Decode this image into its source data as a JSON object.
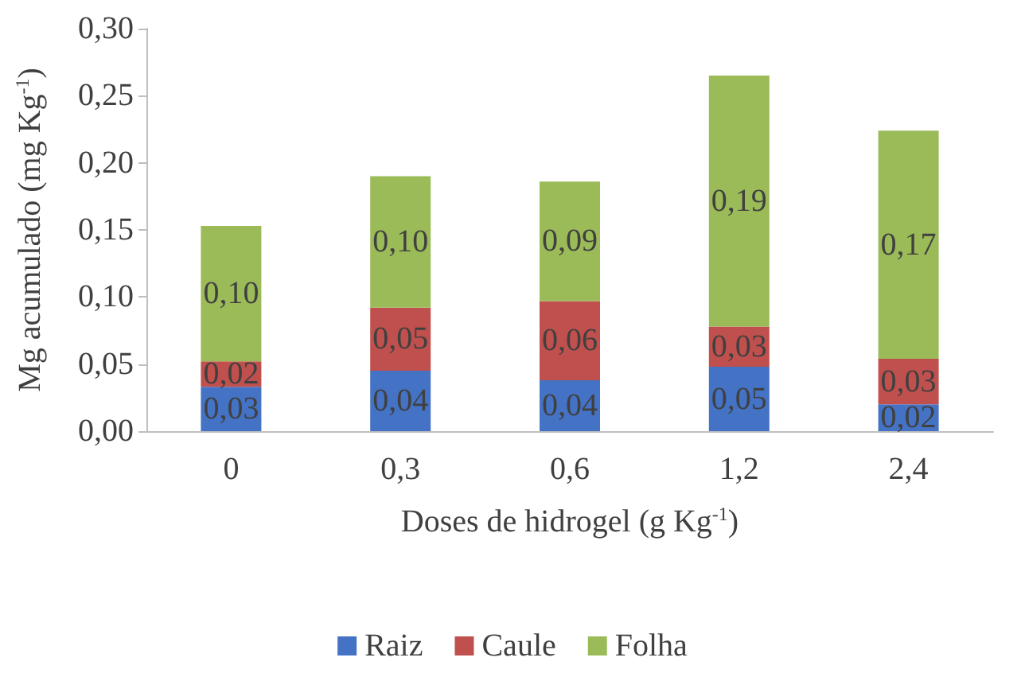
{
  "chart_data": {
    "type": "bar",
    "stacked": true,
    "xlabel": "Doses de hidrogel (g Kg$^{-1}$)",
    "ylabel": "Mg acumulado (mg Kg$^{-1}$)",
    "categories": [
      "0",
      "0,3",
      "0,6",
      "1,2",
      "2,4"
    ],
    "series": [
      {
        "name": "Raiz",
        "color": "#4472c4",
        "values": [
          0.033,
          0.045,
          0.038,
          0.048,
          0.02
        ],
        "value_labels": [
          "0,03",
          "0,04",
          "0,04",
          "0,05",
          "0,02"
        ]
      },
      {
        "name": "Caule",
        "color": "#c0504d",
        "values": [
          0.019,
          0.047,
          0.059,
          0.03,
          0.034
        ],
        "value_labels": [
          "0,02",
          "0,05",
          "0,06",
          "0,03",
          "0,03"
        ]
      },
      {
        "name": "Folha",
        "color": "#9bbb59",
        "values": [
          0.101,
          0.098,
          0.089,
          0.187,
          0.17
        ],
        "value_labels": [
          "0,10",
          "0,10",
          "0,09",
          "0,19",
          "0,17"
        ]
      }
    ],
    "ylim": [
      0,
      0.3
    ],
    "yticks": [
      {
        "value": 0,
        "label": "0,00"
      },
      {
        "value": 0.05,
        "label": "0,05"
      },
      {
        "value": 0.1,
        "label": "0,10"
      },
      {
        "value": 0.15,
        "label": "0,15"
      },
      {
        "value": 0.2,
        "label": "0,20"
      },
      {
        "value": 0.25,
        "label": "0,25"
      },
      {
        "value": 0.3,
        "label": "0,30"
      }
    ],
    "grid": false,
    "legend": "bottom"
  }
}
